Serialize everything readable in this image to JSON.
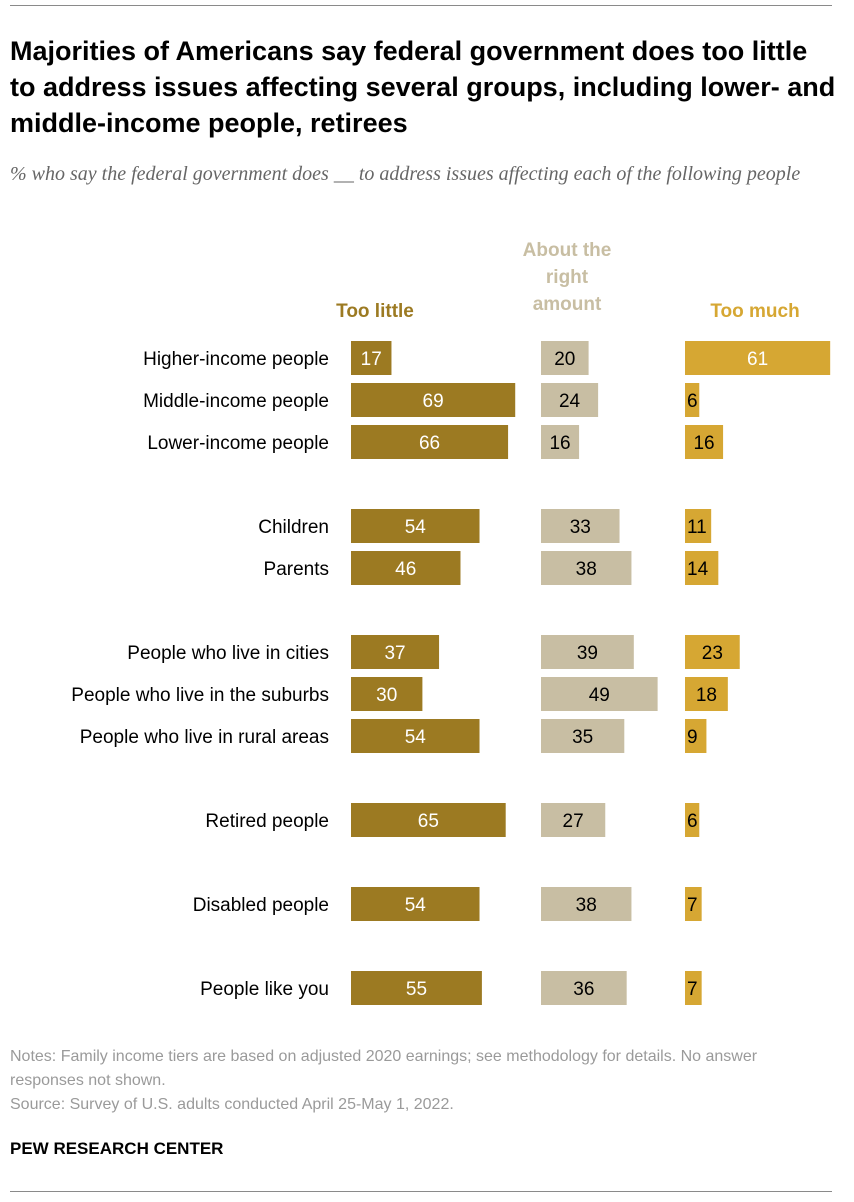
{
  "title": "Majorities of Americans say federal government does too little to address issues affecting several groups, including lower- and middle-income people, retirees",
  "subtitle": "% who say the federal government does __ to address issues affecting each of the following people",
  "colors": {
    "too_little": "#9c7a22",
    "about_right": "#c8bea3",
    "too_much": "#d6a733",
    "label_text": "#000000"
  },
  "chart_data": {
    "type": "bar",
    "orientation": "horizontal",
    "layout": "small-multiples",
    "categories": [
      "Higher-income people",
      "Middle-income people",
      "Lower-income people",
      "Children",
      "Parents",
      "People who live in cities",
      "People who live in the suburbs",
      "People who live in rural areas",
      "Retired people",
      "Disabled people",
      "People like you"
    ],
    "series": [
      {
        "name": "Too little",
        "values": [
          17,
          69,
          66,
          54,
          46,
          37,
          30,
          54,
          65,
          54,
          55
        ]
      },
      {
        "name": "About the right amount",
        "values": [
          20,
          24,
          16,
          33,
          38,
          39,
          49,
          35,
          27,
          38,
          36
        ]
      },
      {
        "name": "Too much",
        "values": [
          61,
          6,
          16,
          11,
          14,
          23,
          18,
          9,
          6,
          7,
          7
        ]
      }
    ],
    "groups": [
      [
        0,
        1,
        2
      ],
      [
        3,
        4
      ],
      [
        5,
        6,
        7
      ],
      [
        8
      ],
      [
        9
      ],
      [
        10
      ]
    ],
    "data_labels": true,
    "grid": false
  },
  "notes": "Notes: Family income tiers are based on adjusted 2020 earnings; see methodology for details. No answer responses not shown.",
  "source": "Source: Survey of U.S. adults conducted April 25-May 1, 2022.",
  "brand": "PEW RESEARCH CENTER"
}
